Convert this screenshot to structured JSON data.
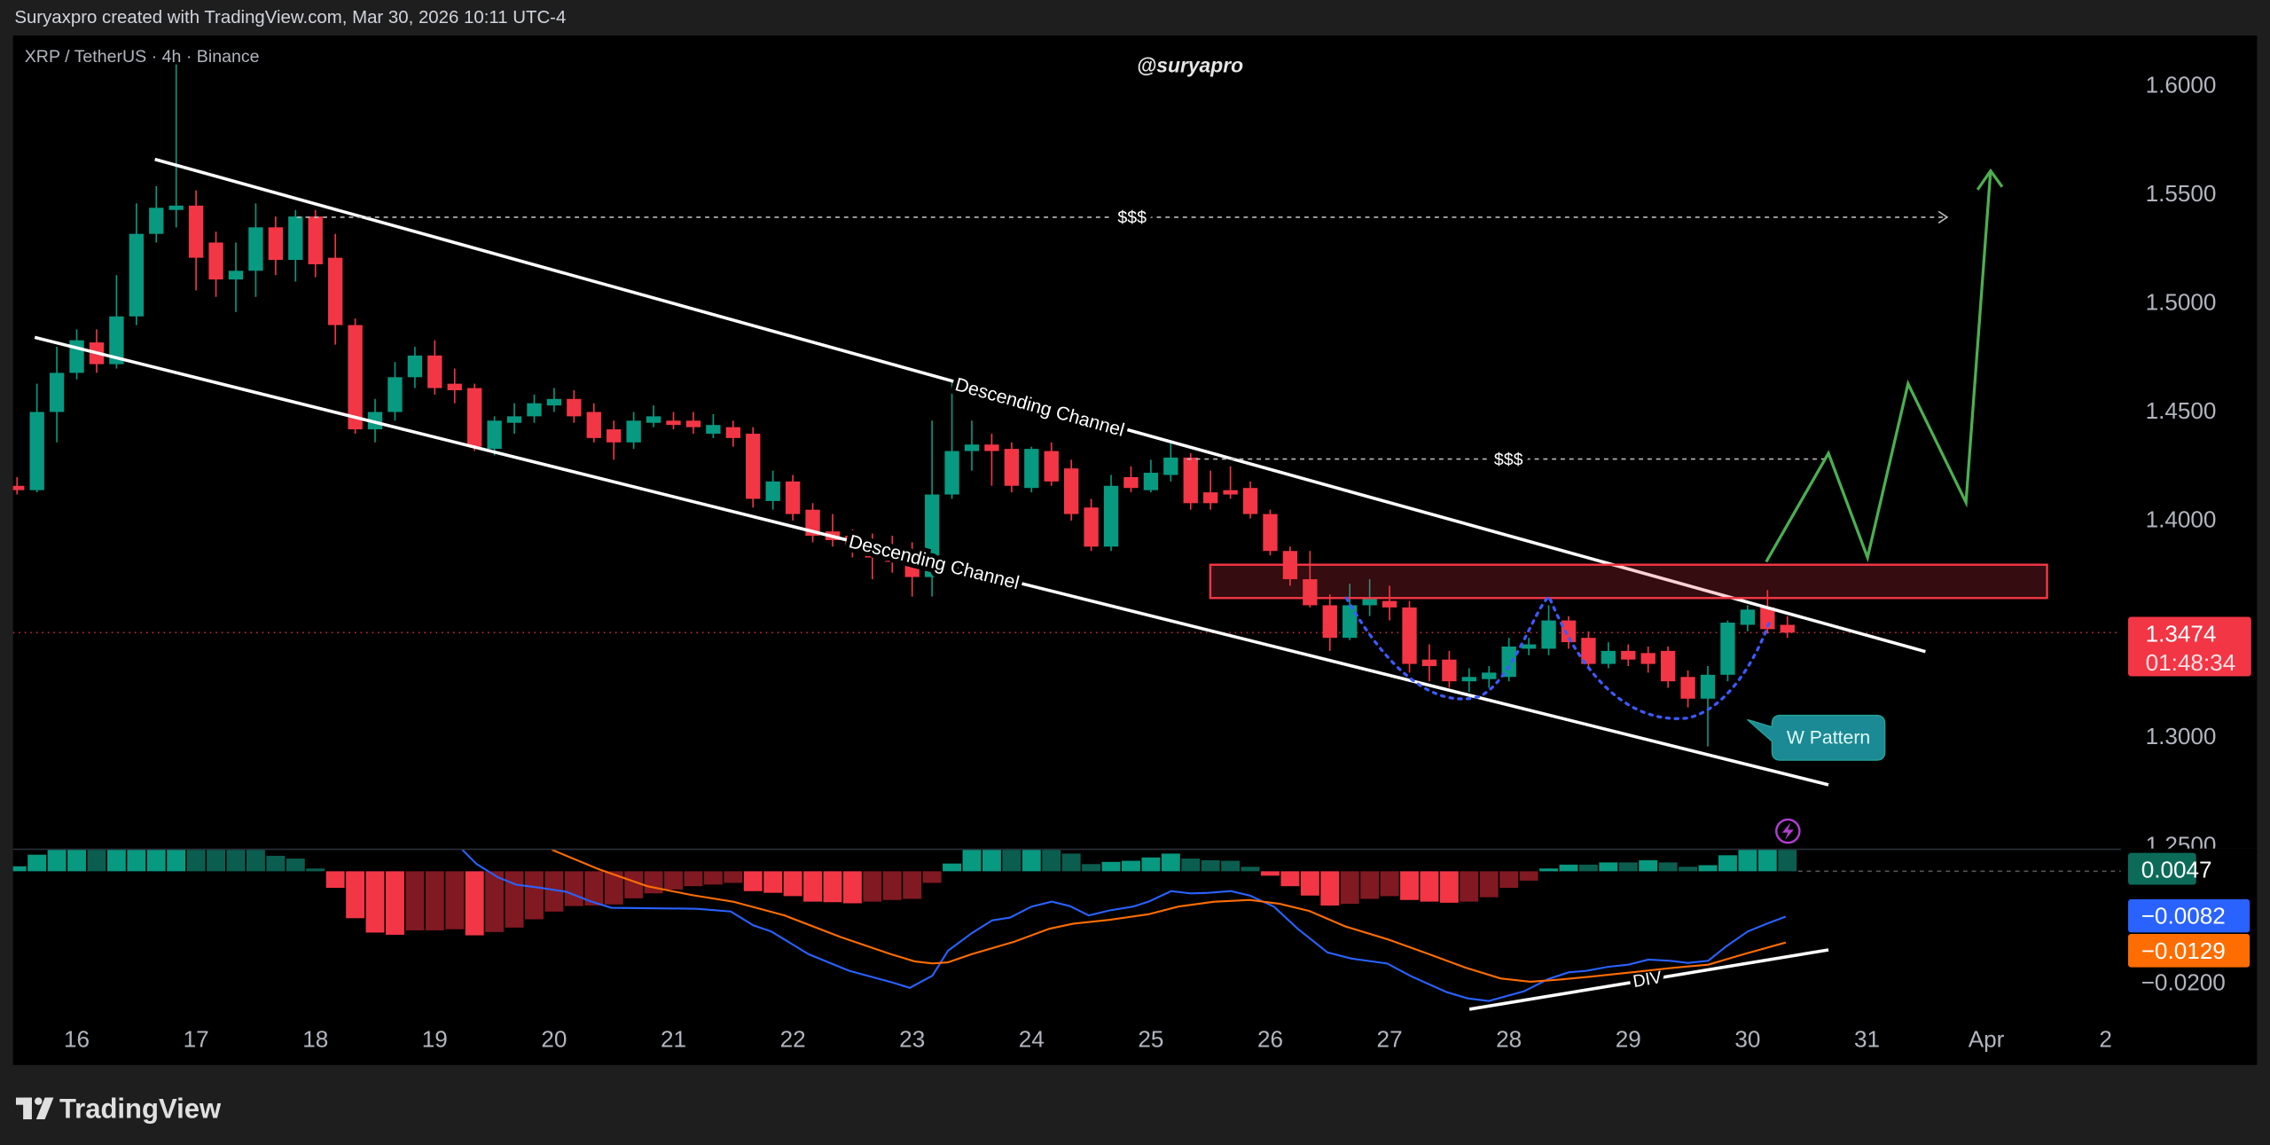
{
  "header": {
    "attribution": "Suryaxpro created with TradingView.com, Mar 30, 2026 10:11 UTC-4"
  },
  "legend": {
    "symbol": "XRP / TetherUS · 4h · Binance"
  },
  "watermark": "@suryapro",
  "price_axis": {
    "ticks": [
      "1.6000",
      "1.5500",
      "1.5000",
      "1.4500",
      "1.4000",
      "1.3000",
      "1.2500"
    ],
    "current_price": "1.3474",
    "countdown": "01:48:34"
  },
  "macd_axis": {
    "histogram": "0.0047",
    "macd": "−0.0082",
    "signal": "−0.0129",
    "tick": "−0.0200"
  },
  "time_axis": {
    "ticks": [
      "16",
      "17",
      "18",
      "19",
      "20",
      "21",
      "22",
      "23",
      "24",
      "25",
      "26",
      "27",
      "28",
      "29",
      "30",
      "31",
      "Apr",
      "2"
    ]
  },
  "annotations": {
    "upper_channel": "Descending Channel",
    "lower_channel": "Descending Channel",
    "liquidity_top": "$$$",
    "liquidity_mid": "$$$",
    "w_pattern": "W Pattern",
    "divergence": "DIV",
    "alert_icon": "lightning-icon"
  },
  "footer": {
    "brand": "TradingView"
  },
  "colors": {
    "up": "#089981",
    "down": "#f23645",
    "hist_up_strong": "#089981",
    "hist_up_weak": "#0b5e4f",
    "hist_down_strong": "#f23645",
    "hist_down_weak": "#801922",
    "macd_line": "#2962ff",
    "signal_line": "#ff6d00",
    "projection": "#4caf50",
    "w_curve": "#3d5afe",
    "zone": "#f23645",
    "callout": "#1b8a94"
  },
  "chart_data": [
    {
      "type": "candlestick",
      "interval": "4h",
      "first_bar": "Mar 15 12:00",
      "ylim": [
        1.25,
        1.6
      ],
      "ohlc": [
        [
          1.415,
          1.419,
          1.411,
          1.413
        ],
        [
          1.413,
          1.462,
          1.412,
          1.449
        ],
        [
          1.449,
          1.479,
          1.435,
          1.467
        ],
        [
          1.467,
          1.487,
          1.464,
          1.482
        ],
        [
          1.481,
          1.487,
          1.467,
          1.471
        ],
        [
          1.471,
          1.512,
          1.469,
          1.493
        ],
        [
          1.493,
          1.545,
          1.489,
          1.531
        ],
        [
          1.531,
          1.553,
          1.527,
          1.543
        ],
        [
          1.542,
          1.609,
          1.534,
          1.544
        ],
        [
          1.544,
          1.551,
          1.505,
          1.52
        ],
        [
          1.527,
          1.532,
          1.502,
          1.51
        ],
        [
          1.51,
          1.527,
          1.495,
          1.514
        ],
        [
          1.514,
          1.545,
          1.502,
          1.534
        ],
        [
          1.534,
          1.539,
          1.512,
          1.519
        ],
        [
          1.519,
          1.542,
          1.509,
          1.539
        ],
        [
          1.539,
          1.542,
          1.511,
          1.517
        ],
        [
          1.52,
          1.531,
          1.48,
          1.489
        ],
        [
          1.489,
          1.492,
          1.439,
          1.441
        ],
        [
          1.441,
          1.455,
          1.435,
          1.449
        ],
        [
          1.449,
          1.472,
          1.445,
          1.465
        ],
        [
          1.465,
          1.479,
          1.46,
          1.475
        ],
        [
          1.475,
          1.482,
          1.457,
          1.46
        ],
        [
          1.462,
          1.469,
          1.453,
          1.459
        ],
        [
          1.46,
          1.462,
          1.431,
          1.433
        ],
        [
          1.432,
          1.447,
          1.429,
          1.445
        ],
        [
          1.444,
          1.453,
          1.439,
          1.447
        ],
        [
          1.447,
          1.457,
          1.444,
          1.453
        ],
        [
          1.452,
          1.46,
          1.449,
          1.455
        ],
        [
          1.455,
          1.459,
          1.444,
          1.447
        ],
        [
          1.449,
          1.453,
          1.435,
          1.437
        ],
        [
          1.441,
          1.445,
          1.427,
          1.435
        ],
        [
          1.435,
          1.449,
          1.432,
          1.445
        ],
        [
          1.444,
          1.452,
          1.442,
          1.447
        ],
        [
          1.445,
          1.449,
          1.441,
          1.443
        ],
        [
          1.445,
          1.449,
          1.439,
          1.442
        ],
        [
          1.439,
          1.448,
          1.437,
          1.443
        ],
        [
          1.442,
          1.445,
          1.433,
          1.437
        ],
        [
          1.439,
          1.442,
          1.405,
          1.409
        ],
        [
          1.408,
          1.422,
          1.404,
          1.417
        ],
        [
          1.417,
          1.42,
          1.399,
          1.402
        ],
        [
          1.404,
          1.407,
          1.389,
          1.392
        ],
        [
          1.394,
          1.402,
          1.387,
          1.39
        ],
        [
          1.392,
          1.395,
          1.382,
          1.387
        ],
        [
          1.389,
          1.393,
          1.372,
          1.382
        ],
        [
          1.387,
          1.392,
          1.375,
          1.38
        ],
        [
          1.382,
          1.389,
          1.364,
          1.373
        ],
        [
          1.373,
          1.445,
          1.364,
          1.411
        ],
        [
          1.411,
          1.464,
          1.409,
          1.431
        ],
        [
          1.431,
          1.445,
          1.422,
          1.434
        ],
        [
          1.434,
          1.439,
          1.415,
          1.431
        ],
        [
          1.432,
          1.435,
          1.412,
          1.415
        ],
        [
          1.414,
          1.433,
          1.412,
          1.432
        ],
        [
          1.431,
          1.435,
          1.415,
          1.417
        ],
        [
          1.423,
          1.427,
          1.399,
          1.402
        ],
        [
          1.405,
          1.409,
          1.385,
          1.387
        ],
        [
          1.387,
          1.42,
          1.385,
          1.415
        ],
        [
          1.419,
          1.424,
          1.412,
          1.414
        ],
        [
          1.413,
          1.427,
          1.412,
          1.421
        ],
        [
          1.42,
          1.435,
          1.417,
          1.428
        ],
        [
          1.428,
          1.43,
          1.404,
          1.407
        ],
        [
          1.412,
          1.422,
          1.404,
          1.407
        ],
        [
          1.413,
          1.424,
          1.409,
          1.411
        ],
        [
          1.414,
          1.417,
          1.4,
          1.402
        ],
        [
          1.402,
          1.404,
          1.383,
          1.385
        ],
        [
          1.385,
          1.387,
          1.369,
          1.372
        ],
        [
          1.372,
          1.385,
          1.359,
          1.36
        ],
        [
          1.36,
          1.365,
          1.339,
          1.345
        ],
        [
          1.345,
          1.37,
          1.344,
          1.36
        ],
        [
          1.36,
          1.372,
          1.355,
          1.363
        ],
        [
          1.362,
          1.369,
          1.353,
          1.359
        ],
        [
          1.359,
          1.362,
          1.329,
          1.333
        ],
        [
          1.335,
          1.342,
          1.325,
          1.332
        ],
        [
          1.335,
          1.339,
          1.322,
          1.325
        ],
        [
          1.325,
          1.331,
          1.32,
          1.327
        ],
        [
          1.326,
          1.332,
          1.322,
          1.329
        ],
        [
          1.327,
          1.345,
          1.325,
          1.341
        ],
        [
          1.34,
          1.345,
          1.337,
          1.342
        ],
        [
          1.34,
          1.36,
          1.337,
          1.353
        ],
        [
          1.353,
          1.355,
          1.34,
          1.343
        ],
        [
          1.345,
          1.348,
          1.331,
          1.333
        ],
        [
          1.333,
          1.343,
          1.331,
          1.339
        ],
        [
          1.339,
          1.342,
          1.332,
          1.335
        ],
        [
          1.338,
          1.341,
          1.329,
          1.333
        ],
        [
          1.339,
          1.341,
          1.322,
          1.325
        ],
        [
          1.327,
          1.33,
          1.313,
          1.317
        ],
        [
          1.317,
          1.332,
          1.295,
          1.328
        ],
        [
          1.328,
          1.353,
          1.325,
          1.352
        ],
        [
          1.351,
          1.36,
          1.348,
          1.358
        ],
        [
          1.359,
          1.367,
          1.347,
          1.349
        ],
        [
          1.351,
          1.355,
          1.345,
          1.3474
        ]
      ]
    },
    {
      "type": "bar",
      "interval": "4h",
      "first_bar": "Mar 15 12:00",
      "values": [
        0.0009,
        0.003,
        0.0045,
        0.0055,
        0.005,
        0.0055,
        0.006,
        0.0065,
        0.007,
        0.0065,
        0.006,
        0.0055,
        0.005,
        0.0028,
        0.0023,
        0.0005,
        -0.003,
        -0.0085,
        -0.0111,
        -0.0115,
        -0.0107,
        -0.0107,
        -0.0105,
        -0.0116,
        -0.011,
        -0.0102,
        -0.0087,
        -0.0073,
        -0.0063,
        -0.0062,
        -0.006,
        -0.0049,
        -0.004,
        -0.0033,
        -0.0027,
        -0.0024,
        -0.0021,
        -0.0036,
        -0.0039,
        -0.0045,
        -0.0055,
        -0.0056,
        -0.0058,
        -0.0055,
        -0.0052,
        -0.005,
        -0.0021,
        0.0014,
        0.004,
        0.0045,
        0.0042,
        0.0046,
        0.0044,
        0.0032,
        0.0013,
        0.0017,
        0.0019,
        0.0025,
        0.0032,
        0.0023,
        0.002,
        0.0019,
        0.0008,
        -0.0008,
        -0.0027,
        -0.0044,
        -0.0062,
        -0.0059,
        -0.005,
        -0.0045,
        -0.0052,
        -0.0055,
        -0.0057,
        -0.0055,
        -0.0047,
        -0.003,
        -0.0017,
        0.0005,
        0.0012,
        0.0012,
        0.0016,
        0.0016,
        0.002,
        0.0016,
        0.0008,
        0.0011,
        0.0029,
        0.004,
        0.0048,
        0.0047
      ]
    },
    {
      "type": "line",
      "x_unit": "day of March",
      "series": [
        {
          "points": [
            [
              19.23,
              0.0039
            ],
            [
              19.35,
              0.0013
            ],
            [
              19.53,
              -0.0011
            ],
            [
              19.68,
              -0.0024
            ],
            [
              19.88,
              -0.003
            ],
            [
              20.1,
              -0.0037
            ],
            [
              20.3,
              -0.0054
            ],
            [
              20.48,
              -0.0066
            ],
            [
              20.88,
              -0.0067
            ],
            [
              21.2,
              -0.0068
            ],
            [
              21.48,
              -0.0073
            ],
            [
              21.67,
              -0.0098
            ],
            [
              21.82,
              -0.0109
            ],
            [
              22.13,
              -0.015
            ],
            [
              22.47,
              -0.018
            ],
            [
              22.83,
              -0.0201
            ],
            [
              22.98,
              -0.0211
            ],
            [
              23.17,
              -0.0189
            ],
            [
              23.3,
              -0.0144
            ],
            [
              23.5,
              -0.0112
            ],
            [
              23.67,
              -0.0089
            ],
            [
              23.82,
              -0.0084
            ],
            [
              24.0,
              -0.0064
            ],
            [
              24.17,
              -0.0055
            ],
            [
              24.32,
              -0.0063
            ],
            [
              24.48,
              -0.008
            ],
            [
              24.65,
              -0.0071
            ],
            [
              24.85,
              -0.0064
            ],
            [
              24.98,
              -0.0055
            ],
            [
              25.17,
              -0.0036
            ],
            [
              25.33,
              -0.004
            ],
            [
              25.48,
              -0.0039
            ],
            [
              25.67,
              -0.0036
            ],
            [
              25.83,
              -0.0044
            ],
            [
              26.03,
              -0.0064
            ],
            [
              26.23,
              -0.0104
            ],
            [
              26.48,
              -0.0147
            ],
            [
              26.68,
              -0.0158
            ],
            [
              26.98,
              -0.0167
            ],
            [
              27.18,
              -0.019
            ],
            [
              27.48,
              -0.0219
            ],
            [
              27.65,
              -0.023
            ],
            [
              27.83,
              -0.0235
            ],
            [
              28.13,
              -0.0217
            ],
            [
              28.33,
              -0.0195
            ],
            [
              28.5,
              -0.0183
            ],
            [
              28.65,
              -0.018
            ],
            [
              28.83,
              -0.0173
            ],
            [
              29.0,
              -0.0169
            ],
            [
              29.17,
              -0.016
            ],
            [
              29.35,
              -0.0162
            ],
            [
              29.5,
              -0.0166
            ],
            [
              29.67,
              -0.0162
            ],
            [
              29.82,
              -0.0136
            ],
            [
              30.0,
              -0.0109
            ],
            [
              30.17,
              -0.0094
            ],
            [
              30.32,
              -0.0082
            ]
          ]
        },
        {
          "points": [
            [
              19.98,
              0.0039
            ],
            [
              20.37,
              0.0004
            ],
            [
              20.78,
              -0.0027
            ],
            [
              21.15,
              -0.0043
            ],
            [
              21.5,
              -0.0055
            ],
            [
              21.93,
              -0.008
            ],
            [
              22.4,
              -0.0119
            ],
            [
              22.82,
              -0.015
            ],
            [
              23.02,
              -0.0163
            ],
            [
              23.17,
              -0.0167
            ],
            [
              23.3,
              -0.0165
            ],
            [
              23.5,
              -0.015
            ],
            [
              23.85,
              -0.0128
            ],
            [
              24.15,
              -0.0104
            ],
            [
              24.35,
              -0.0095
            ],
            [
              24.65,
              -0.0088
            ],
            [
              24.98,
              -0.0078
            ],
            [
              25.23,
              -0.0064
            ],
            [
              25.53,
              -0.0055
            ],
            [
              25.83,
              -0.0052
            ],
            [
              26.08,
              -0.0059
            ],
            [
              26.33,
              -0.0072
            ],
            [
              26.63,
              -0.01
            ],
            [
              26.98,
              -0.0123
            ],
            [
              27.33,
              -0.015
            ],
            [
              27.63,
              -0.0174
            ],
            [
              27.93,
              -0.0194
            ],
            [
              28.18,
              -0.02
            ],
            [
              28.43,
              -0.0196
            ],
            [
              28.72,
              -0.019
            ],
            [
              29.07,
              -0.0182
            ],
            [
              29.37,
              -0.0175
            ],
            [
              29.67,
              -0.0169
            ],
            [
              29.97,
              -0.015
            ],
            [
              30.32,
              -0.0129
            ]
          ]
        }
      ]
    }
  ]
}
